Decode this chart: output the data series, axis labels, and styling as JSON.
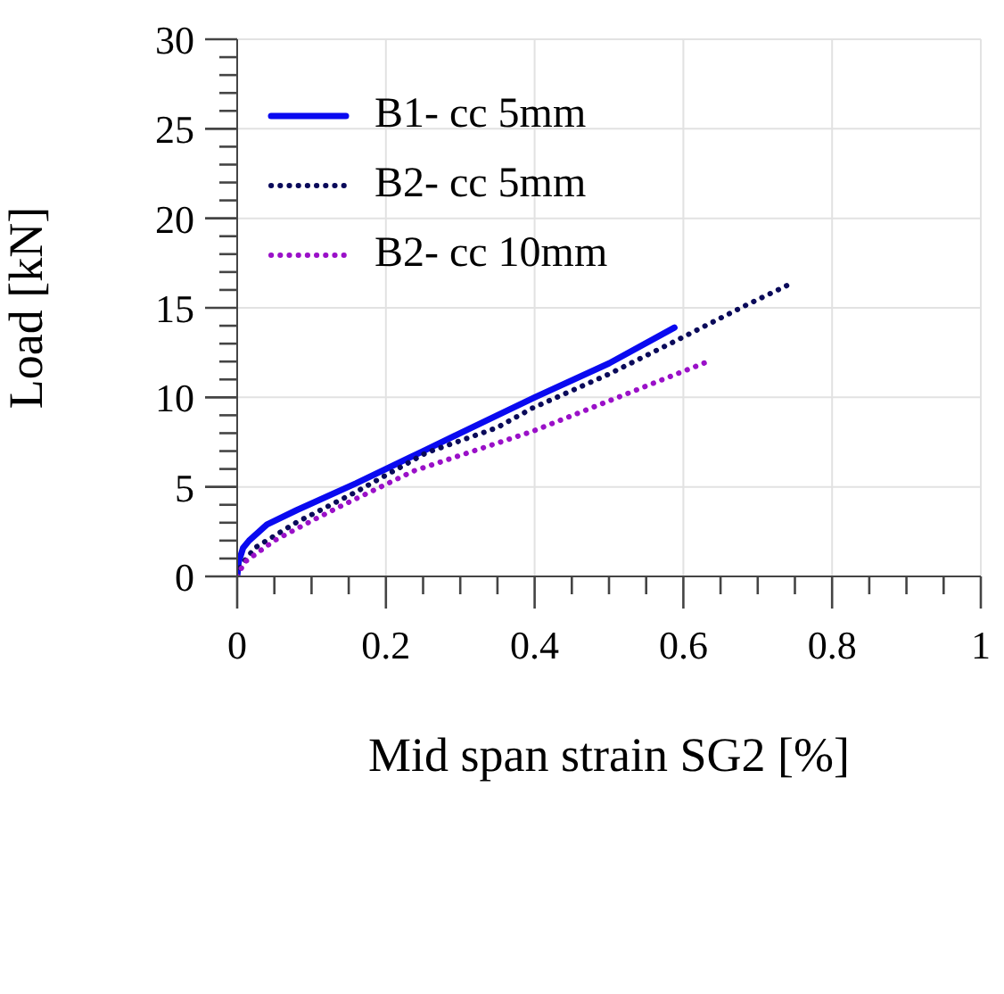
{
  "chart_data": {
    "type": "line",
    "xlabel": "Mid span strain SG2 [%]",
    "ylabel": "Load [kN]",
    "xlim": [
      0,
      1
    ],
    "ylim": [
      0,
      30
    ],
    "xticks": [
      0,
      {
        "value": 0.05,
        "label": null
      },
      {
        "value": 0.1,
        "label": null
      },
      {
        "value": 0.15,
        "label": null
      },
      0.2,
      {
        "value": 0.25,
        "label": null
      },
      {
        "value": 0.3,
        "label": null
      },
      {
        "value": 0.35,
        "label": null
      },
      0.4,
      {
        "value": 0.45,
        "label": null
      },
      {
        "value": 0.5,
        "label": null
      },
      {
        "value": 0.55,
        "label": null
      },
      0.6,
      {
        "value": 0.65,
        "label": null
      },
      {
        "value": 0.7,
        "label": null
      },
      {
        "value": 0.75,
        "label": null
      },
      0.8,
      {
        "value": 0.85,
        "label": null
      },
      {
        "value": 0.9,
        "label": null
      },
      {
        "value": 0.95,
        "label": null
      },
      1
    ],
    "yticks": [
      0,
      {
        "value": 1,
        "label": null
      },
      {
        "value": 2,
        "label": null
      },
      {
        "value": 3,
        "label": null
      },
      {
        "value": 4,
        "label": null
      },
      5,
      {
        "value": 6,
        "label": null
      },
      {
        "value": 7,
        "label": null
      },
      {
        "value": 8,
        "label": null
      },
      {
        "value": 9,
        "label": null
      },
      10,
      {
        "value": 11,
        "label": null
      },
      {
        "value": 12,
        "label": null
      },
      {
        "value": 13,
        "label": null
      },
      {
        "value": 14,
        "label": null
      },
      15,
      {
        "value": 16,
        "label": null
      },
      {
        "value": 17,
        "label": null
      },
      {
        "value": 18,
        "label": null
      },
      {
        "value": 19,
        "label": null
      },
      20,
      {
        "value": 21,
        "label": null
      },
      {
        "value": 22,
        "label": null
      },
      {
        "value": 23,
        "label": null
      },
      {
        "value": 24,
        "label": null
      },
      25,
      {
        "value": 26,
        "label": null
      },
      {
        "value": 27,
        "label": null
      },
      {
        "value": 28,
        "label": null
      },
      {
        "value": 29,
        "label": null
      },
      30
    ],
    "grid": true,
    "legend": "top left",
    "marker": "none",
    "series": [
      {
        "name": "B1- cc 5mm",
        "color": "#0a0af0",
        "line_style": "solid",
        "x": [
          0,
          0.002,
          0.008,
          0.016,
          0.04,
          0.08,
          0.16,
          0.25,
          0.35,
          0.4,
          0.5,
          0.588
        ],
        "values": [
          0,
          0.8,
          1.6,
          2.0,
          2.9,
          3.7,
          5.2,
          7.0,
          9.0,
          10.0,
          11.9,
          13.9
        ]
      },
      {
        "name": "B2- cc 5mm",
        "color": "#0a0a5a",
        "line_style": "dotted",
        "x": [
          0,
          0.005,
          0.024,
          0.079,
          0.159,
          0.254,
          0.349,
          0.397,
          0.5,
          0.587,
          0.682,
          0.747
        ],
        "values": [
          0,
          0.6,
          1.6,
          3.0,
          4.7,
          6.9,
          8.3,
          9.4,
          11.3,
          13.1,
          15.1,
          16.4
        ]
      },
      {
        "name": "B2- cc 10mm",
        "color": "#9a10c8",
        "line_style": "dotted",
        "x": [
          0,
          0.01,
          0.05,
          0.1,
          0.143,
          0.238,
          0.397,
          0.524,
          0.639
        ],
        "values": [
          0,
          0.8,
          2.0,
          3.1,
          4.0,
          5.9,
          8.1,
          10.2,
          12.1
        ]
      }
    ]
  }
}
